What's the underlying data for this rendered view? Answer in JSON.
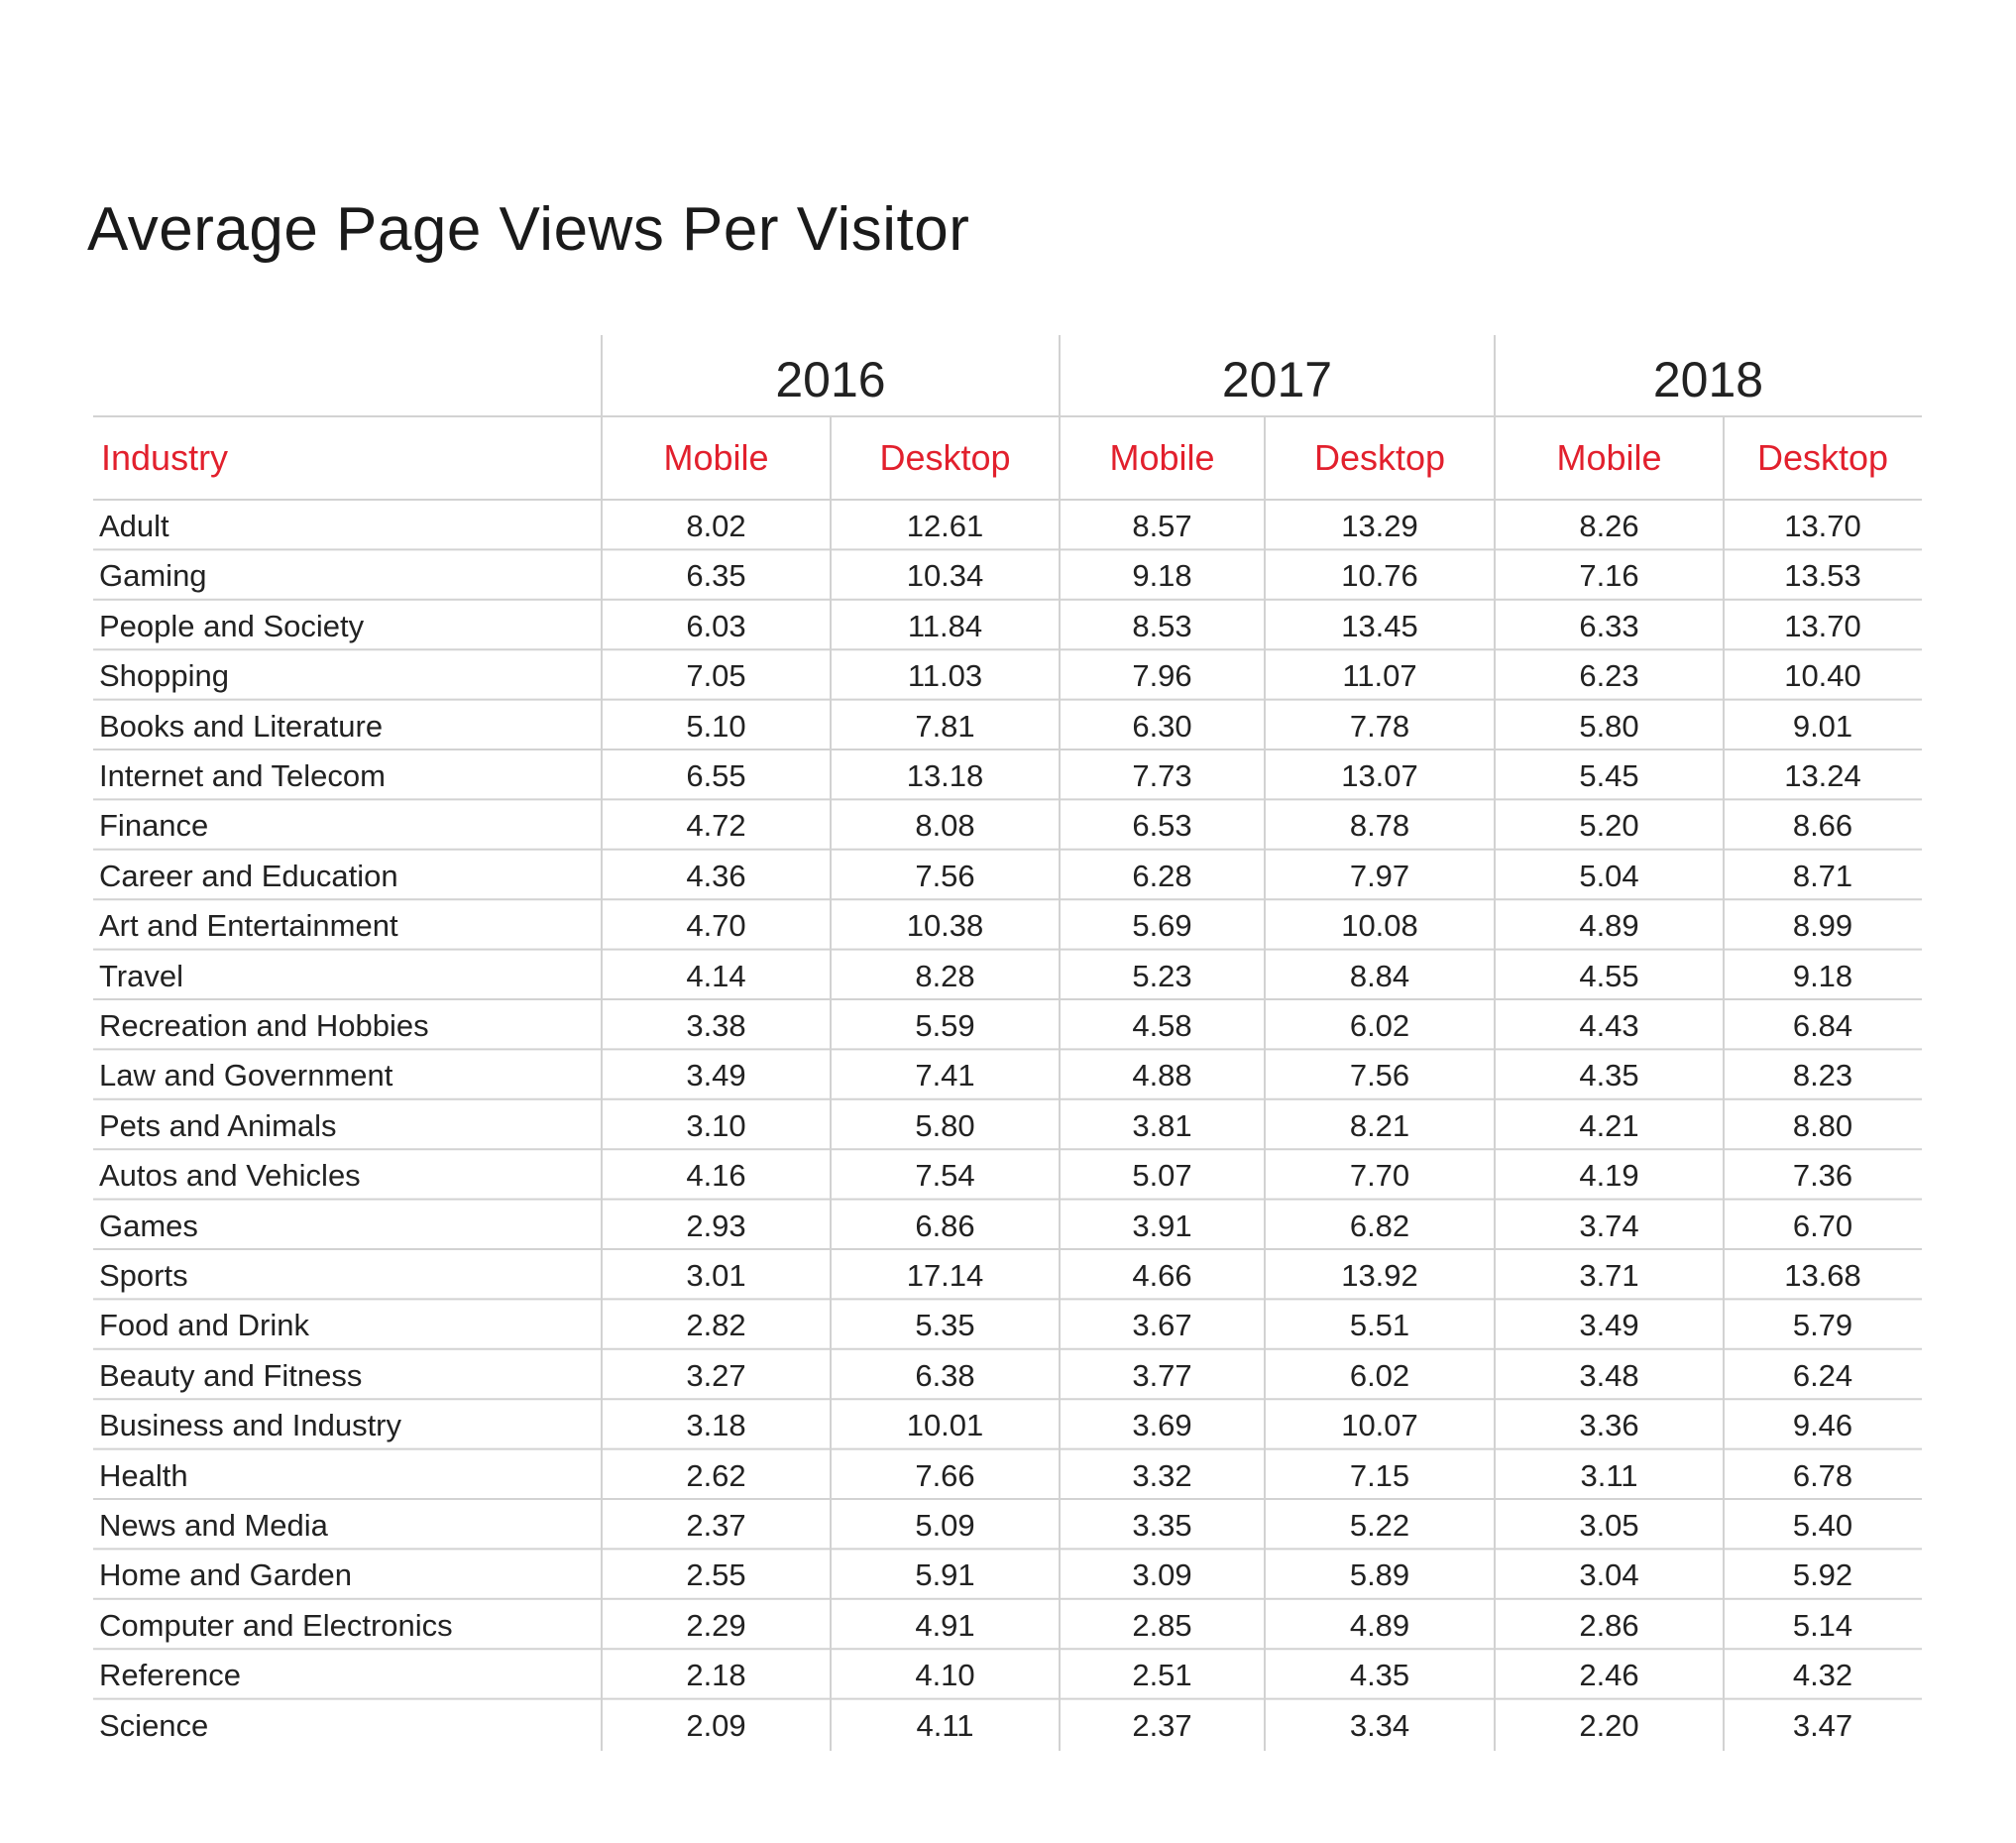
{
  "chart_data": {
    "type": "table",
    "title": "Average Page Views Per Visitor",
    "years": [
      "2016",
      "2017",
      "2018"
    ],
    "row_header": "Industry",
    "sub_columns": [
      "Mobile",
      "Desktop",
      "Mobile",
      "Desktop",
      "Mobile",
      "Desktop"
    ],
    "accent_color": "#e2202d",
    "rows": [
      {
        "industry": "Adult",
        "values": [
          "8.02",
          "12.61",
          "8.57",
          "13.29",
          "8.26",
          "13.70"
        ]
      },
      {
        "industry": "Gaming",
        "values": [
          "6.35",
          "10.34",
          "9.18",
          "10.76",
          "7.16",
          "13.53"
        ]
      },
      {
        "industry": "People and Society",
        "values": [
          "6.03",
          "11.84",
          "8.53",
          "13.45",
          "6.33",
          "13.70"
        ]
      },
      {
        "industry": "Shopping",
        "values": [
          "7.05",
          "11.03",
          "7.96",
          "11.07",
          "6.23",
          "10.40"
        ]
      },
      {
        "industry": "Books and Literature",
        "values": [
          "5.10",
          "7.81",
          "6.30",
          "7.78",
          "5.80",
          "9.01"
        ]
      },
      {
        "industry": "Internet and Telecom",
        "values": [
          "6.55",
          "13.18",
          "7.73",
          "13.07",
          "5.45",
          "13.24"
        ]
      },
      {
        "industry": "Finance",
        "values": [
          "4.72",
          "8.08",
          "6.53",
          "8.78",
          "5.20",
          "8.66"
        ]
      },
      {
        "industry": "Career and Education",
        "values": [
          "4.36",
          "7.56",
          "6.28",
          "7.97",
          "5.04",
          "8.71"
        ]
      },
      {
        "industry": "Art and Entertainment",
        "values": [
          "4.70",
          "10.38",
          "5.69",
          "10.08",
          "4.89",
          "8.99"
        ]
      },
      {
        "industry": "Travel",
        "values": [
          "4.14",
          "8.28",
          "5.23",
          "8.84",
          "4.55",
          "9.18"
        ]
      },
      {
        "industry": "Recreation and Hobbies",
        "values": [
          "3.38",
          "5.59",
          "4.58",
          "6.02",
          "4.43",
          "6.84"
        ]
      },
      {
        "industry": "Law and Government",
        "values": [
          "3.49",
          "7.41",
          "4.88",
          "7.56",
          "4.35",
          "8.23"
        ]
      },
      {
        "industry": "Pets and Animals",
        "values": [
          "3.10",
          "5.80",
          "3.81",
          "8.21",
          "4.21",
          "8.80"
        ]
      },
      {
        "industry": "Autos and Vehicles",
        "values": [
          "4.16",
          "7.54",
          "5.07",
          "7.70",
          "4.19",
          "7.36"
        ]
      },
      {
        "industry": "Games",
        "values": [
          "2.93",
          "6.86",
          "3.91",
          "6.82",
          "3.74",
          "6.70"
        ]
      },
      {
        "industry": "Sports",
        "values": [
          "3.01",
          "17.14",
          "4.66",
          "13.92",
          "3.71",
          "13.68"
        ]
      },
      {
        "industry": "Food and Drink",
        "values": [
          "2.82",
          "5.35",
          "3.67",
          "5.51",
          "3.49",
          "5.79"
        ]
      },
      {
        "industry": "Beauty and Fitness",
        "values": [
          "3.27",
          "6.38",
          "3.77",
          "6.02",
          "3.48",
          "6.24"
        ]
      },
      {
        "industry": "Business and Industry",
        "values": [
          "3.18",
          "10.01",
          "3.69",
          "10.07",
          "3.36",
          "9.46"
        ]
      },
      {
        "industry": "Health",
        "values": [
          "2.62",
          "7.66",
          "3.32",
          "7.15",
          "3.11",
          "6.78"
        ]
      },
      {
        "industry": "News and Media",
        "values": [
          "2.37",
          "5.09",
          "3.35",
          "5.22",
          "3.05",
          "5.40"
        ]
      },
      {
        "industry": "Home and Garden",
        "values": [
          "2.55",
          "5.91",
          "3.09",
          "5.89",
          "3.04",
          "5.92"
        ]
      },
      {
        "industry": "Computer and Electronics",
        "values": [
          "2.29",
          "4.91",
          "2.85",
          "4.89",
          "2.86",
          "5.14"
        ]
      },
      {
        "industry": "Reference",
        "values": [
          "2.18",
          "4.10",
          "2.51",
          "4.35",
          "2.46",
          "4.32"
        ]
      },
      {
        "industry": "Science",
        "values": [
          "2.09",
          "4.11",
          "2.37",
          "3.34",
          "2.20",
          "3.47"
        ]
      }
    ]
  }
}
